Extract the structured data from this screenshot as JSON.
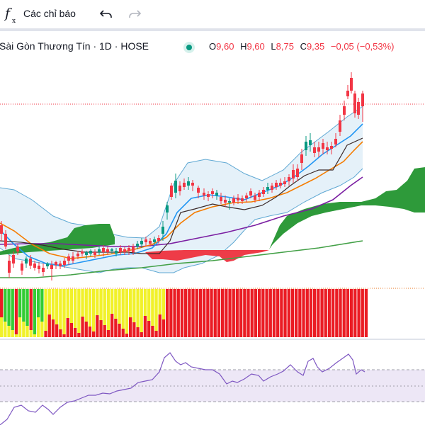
{
  "toolbar": {
    "indicators_label": "Các chỉ báo",
    "indicators_icon": "fx-function-icon",
    "undo_icon": "undo-icon",
    "redo_icon": "redo-icon"
  },
  "legend": {
    "symbol_title": "Sài Gòn Thương Tín · 1D · HOSE",
    "status_icon": "market-open-dot-icon",
    "open_key": "O",
    "open": "9,60",
    "high_key": "H",
    "high": "9,60",
    "low_key": "L",
    "low": "8,75",
    "close_key": "C",
    "close": "9,35",
    "change": "−0,05 (−0,53%)"
  },
  "colors": {
    "up": "#089981",
    "down": "#f23645",
    "ichimoku_cloud_green": "#2e9a3a",
    "ichimoku_cloud_red": "#ee3c48",
    "bollinger_fill": "#dcecf7",
    "rsi_band": "#ede7f6",
    "rsi_line": "#7e57c2"
  }
}
